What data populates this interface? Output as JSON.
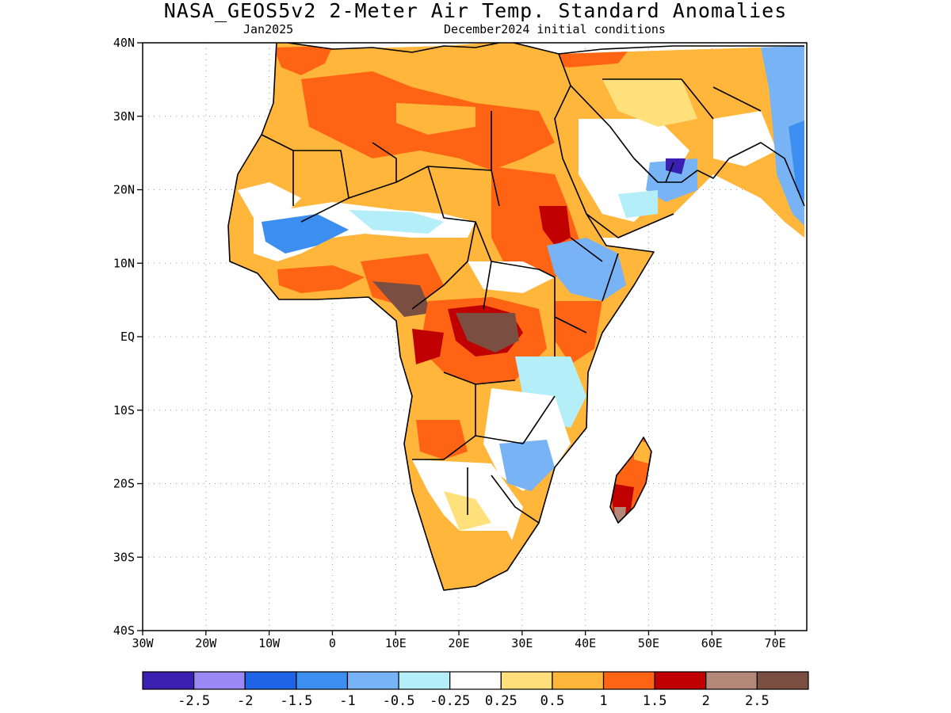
{
  "title": "NASA_GEOS5v2 2-Meter Air Temp. Standard Anomalies",
  "subtitle_left": "Jan2025",
  "subtitle_right": "December2024 initial conditions",
  "map": {
    "lon_range": [
      -30,
      75
    ],
    "lat_range": [
      -40,
      40
    ],
    "gridlines": "dotted",
    "lat_ticks": [
      "40N",
      "30N",
      "20N",
      "10N",
      "EQ",
      "10S",
      "20S",
      "30S",
      "40S"
    ],
    "lon_ticks": [
      "30W",
      "20W",
      "10W",
      "0",
      "10E",
      "20E",
      "30E",
      "40E",
      "50E",
      "60E",
      "70E"
    ]
  },
  "colorbar": {
    "colors": [
      "#3a20b0",
      "#9a88f5",
      "#1f63e6",
      "#3c8ef0",
      "#78b4f5",
      "#b4eef8",
      "#ffffff",
      "#ffe07a",
      "#ffb63a",
      "#ff6414",
      "#c00000",
      "#b48878",
      "#7a4e40"
    ],
    "labels": [
      "-2.5",
      "-2",
      "-1.5",
      "-1",
      "-0.5",
      "-0.25",
      "0.25",
      "0.5",
      "1",
      "1.5",
      "2",
      "2.5"
    ]
  }
}
